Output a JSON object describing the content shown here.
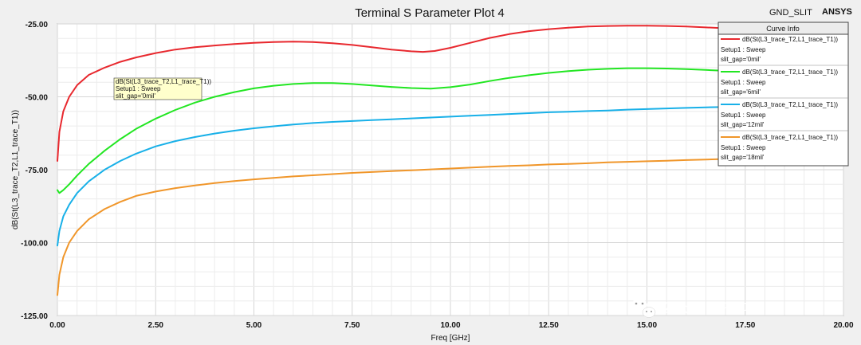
{
  "header": {
    "title": "Terminal S Parameter Plot 4",
    "design_name": "GND_SLIT",
    "brand": "ANSYS"
  },
  "legend": {
    "title": "Curve Info",
    "entries": [
      {
        "line1": "dB(St(L3_trace_T2,L1_trace_T1))",
        "line2": "Setup1 : Sweep",
        "line3": "slit_gap='0mil'",
        "color": "#e8282e"
      },
      {
        "line1": "dB(St(L3_trace_T2,L1_trace_T1))",
        "line2": "Setup1 : Sweep",
        "line3": "slit_gap='6mil'",
        "color": "#22e622"
      },
      {
        "line1": "dB(St(L3_trace_T2,L1_trace_T1))",
        "line2": "Setup1 : Sweep",
        "line3": "slit_gap='12mil'",
        "color": "#18b0e8"
      },
      {
        "line1": "dB(St(L3_trace_T2,L1_trace_T1))",
        "line2": "Setup1 : Sweep",
        "line3": "slit_gap='18mil'",
        "color": "#f0962a"
      }
    ]
  },
  "tooltip": {
    "line1": "dB(St(L3_trace_T2,L1_trace_T1))",
    "line2": "Setup1 : Sweep",
    "line3": "slit_gap='0mil'"
  },
  "watermark": "公众号 · 开仿啦",
  "chart_data": {
    "type": "line",
    "title": "Terminal S Parameter Plot 4",
    "xlabel": "Freq [GHz]",
    "ylabel": "dB(St(L3_trace_T2,L1_trace_T1))",
    "xlim": [
      0,
      20
    ],
    "ylim": [
      -125,
      -25
    ],
    "xticks": [
      0,
      2.5,
      5,
      7.5,
      10,
      12.5,
      15,
      17.5,
      20
    ],
    "xtick_labels": [
      "0.00",
      "2.50",
      "5.00",
      "7.50",
      "10.00",
      "12.50",
      "15.00",
      "17.50",
      "20.00"
    ],
    "yticks": [
      -25,
      -50,
      -75,
      -100,
      -125
    ],
    "ytick_labels": [
      "-25.00",
      "-50.00",
      "-75.00",
      "-100.00",
      "-125.00"
    ],
    "grid": true,
    "legend_position": "top-right",
    "series": [
      {
        "name": "slit_gap='0mil'",
        "color": "#e8282e",
        "x": [
          0,
          0.05,
          0.15,
          0.3,
          0.5,
          0.8,
          1.2,
          1.6,
          2.0,
          2.5,
          3.0,
          3.5,
          4.0,
          4.5,
          5.0,
          5.5,
          6.0,
          6.5,
          7.0,
          7.5,
          8.0,
          8.5,
          9.0,
          9.3,
          9.6,
          10.0,
          10.5,
          11.0,
          11.5,
          12.0,
          12.5,
          13.0,
          13.5,
          14.0,
          14.5,
          15.0,
          15.5,
          16.0,
          16.5,
          17.0,
          17.5,
          18.0,
          18.3
        ],
        "y": [
          -72,
          -62,
          -55,
          -50,
          -46,
          -42.5,
          -40,
          -38,
          -36.5,
          -35,
          -33.8,
          -33,
          -32.4,
          -31.9,
          -31.5,
          -31.2,
          -31.1,
          -31.2,
          -31.6,
          -32.2,
          -33,
          -33.8,
          -34.4,
          -34.6,
          -34.3,
          -33.2,
          -31.5,
          -29.8,
          -28.5,
          -27.5,
          -26.8,
          -26.3,
          -25.9,
          -25.7,
          -25.6,
          -25.6,
          -25.7,
          -25.9,
          -26.2,
          -26.5,
          -26.9,
          -27.3,
          -27.6
        ]
      },
      {
        "name": "slit_gap='6mil'",
        "color": "#22e622",
        "x": [
          0,
          0.05,
          0.15,
          0.3,
          0.5,
          0.8,
          1.2,
          1.6,
          2.0,
          2.5,
          3.0,
          3.5,
          4.0,
          4.5,
          5.0,
          5.5,
          6.0,
          6.5,
          7.0,
          7.5,
          8.0,
          8.5,
          9.0,
          9.5,
          10.0,
          10.5,
          11.0,
          11.5,
          12.0,
          12.5,
          13.0,
          13.5,
          14.0,
          14.5,
          15.0,
          15.5,
          16.0,
          16.5,
          17.0,
          17.5,
          18.0,
          18.3
        ],
        "y": [
          -82,
          -83,
          -82,
          -80,
          -77,
          -73,
          -68.5,
          -64.5,
          -61,
          -57.5,
          -54.5,
          -52,
          -50,
          -48.4,
          -47.1,
          -46.2,
          -45.6,
          -45.3,
          -45.3,
          -45.6,
          -46.1,
          -46.6,
          -47,
          -47.2,
          -46.7,
          -45.8,
          -44.6,
          -43.5,
          -42.6,
          -41.8,
          -41.2,
          -40.7,
          -40.4,
          -40.2,
          -40.2,
          -40.3,
          -40.5,
          -40.8,
          -41.1,
          -41.4,
          -41.7,
          -41.9
        ]
      },
      {
        "name": "slit_gap='12mil'",
        "color": "#18b0e8",
        "x": [
          0,
          0.05,
          0.15,
          0.3,
          0.5,
          0.8,
          1.2,
          1.6,
          2.0,
          2.5,
          3.0,
          3.5,
          4.0,
          4.5,
          5.0,
          5.5,
          6.0,
          6.5,
          7.0,
          7.5,
          8.0,
          8.5,
          9.0,
          9.5,
          10.0,
          10.5,
          11.0,
          11.5,
          12.0,
          12.5,
          13.0,
          13.5,
          14.0,
          14.5,
          15.0,
          15.5,
          16.0,
          16.5,
          17.0,
          17.5,
          18.0,
          18.3
        ],
        "y": [
          -101,
          -96,
          -91,
          -87,
          -83,
          -79,
          -75,
          -72,
          -69.5,
          -67,
          -65.2,
          -63.8,
          -62.6,
          -61.6,
          -60.8,
          -60.1,
          -59.5,
          -59,
          -58.6,
          -58.3,
          -58,
          -57.7,
          -57.4,
          -57.1,
          -56.8,
          -56.5,
          -56.2,
          -55.9,
          -55.6,
          -55.3,
          -55.1,
          -54.9,
          -54.7,
          -54.4,
          -54.2,
          -54,
          -53.8,
          -53.6,
          -53.5,
          -53.3,
          -53.1,
          -53
        ]
      },
      {
        "name": "slit_gap='18mil'",
        "color": "#f0962a",
        "x": [
          0,
          0.05,
          0.15,
          0.3,
          0.5,
          0.8,
          1.2,
          1.6,
          2.0,
          2.5,
          3.0,
          3.5,
          4.0,
          4.5,
          5.0,
          5.5,
          6.0,
          6.5,
          7.0,
          7.5,
          8.0,
          8.5,
          9.0,
          9.5,
          10.0,
          10.5,
          11.0,
          11.5,
          12.0,
          12.5,
          13.0,
          13.5,
          14.0,
          14.5,
          15.0,
          15.5,
          16.0,
          16.5,
          17.0,
          17.5,
          18.0,
          18.3
        ],
        "y": [
          -118,
          -111,
          -105,
          -100,
          -96,
          -92,
          -88.5,
          -86,
          -84,
          -82.5,
          -81.3,
          -80.4,
          -79.6,
          -78.9,
          -78.3,
          -77.8,
          -77.3,
          -76.9,
          -76.5,
          -76.1,
          -75.8,
          -75.5,
          -75.2,
          -74.9,
          -74.6,
          -74.3,
          -74,
          -73.7,
          -73.5,
          -73.2,
          -73,
          -72.8,
          -72.5,
          -72.3,
          -72.1,
          -71.9,
          -71.7,
          -71.5,
          -71.3,
          -71.1,
          -70.9,
          -70.8
        ]
      }
    ]
  }
}
